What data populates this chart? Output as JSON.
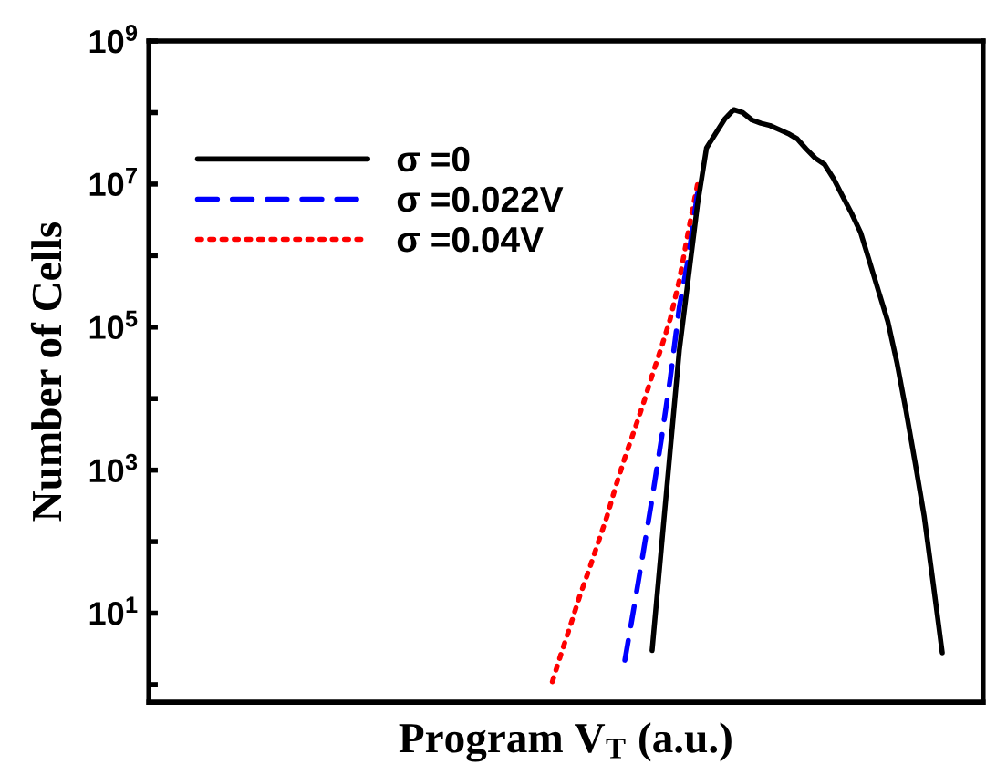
{
  "chart_data": {
    "type": "line",
    "xlabel": "Program V$_{T}$ (a.u.)",
    "ylabel": "Number of Cells",
    "categories": [
      null,
      null,
      null,
      null,
      null,
      null,
      null,
      null,
      null,
      null,
      null,
      null,
      null,
      null,
      null,
      null,
      null,
      null,
      null,
      null,
      null,
      null,
      null,
      null,
      null,
      null,
      null,
      null,
      null,
      null,
      null,
      null,
      null,
      null,
      null,
      null,
      null,
      null,
      null,
      null,
      null,
      null,
      null,
      null,
      null,
      null,
      null,
      null,
      null,
      null,
      null,
      null,
      null,
      null,
      null,
      null,
      null,
      null,
      null,
      null,
      null,
      null,
      null,
      null,
      null,
      null,
      null,
      null,
      null,
      null,
      null,
      null,
      null,
      null,
      null,
      null,
      null,
      null,
      null,
      null,
      null,
      null,
      null,
      null,
      null,
      null,
      null,
      null,
      null,
      null,
      null,
      null
    ],
    "log": "y",
    "ylim": [
      0.57,
      1000000000.0
    ],
    "yticks": [
      {
        "value": 1,
        "label": null
      },
      {
        "value": 10,
        "label": "10$^{1}$"
      },
      {
        "value": 100,
        "label": null
      },
      {
        "value": 1000,
        "label": "10$^{3}$"
      },
      {
        "value": 10000,
        "label": null
      },
      {
        "value": 100000,
        "label": "10$^{5}$"
      },
      {
        "value": 1000000,
        "label": null
      },
      {
        "value": 10000000,
        "label": "10$^{7}$"
      },
      {
        "value": 100000000,
        "label": null
      },
      {
        "value": 1000000000,
        "label": "10$^{9}$"
      }
    ],
    "tick_labels": "y",
    "grid": false,
    "legend": "top left",
    "marker": "none",
    "series": [
      {
        "name": "σ =0",
        "color": "#000000",
        "line_style": "solid",
        "values": [
          null,
          null,
          null,
          null,
          null,
          null,
          null,
          null,
          null,
          null,
          null,
          null,
          null,
          null,
          null,
          null,
          null,
          null,
          null,
          null,
          null,
          null,
          null,
          null,
          null,
          null,
          null,
          null,
          null,
          null,
          null,
          null,
          null,
          null,
          null,
          null,
          null,
          null,
          null,
          null,
          null,
          null,
          null,
          null,
          null,
          null,
          null,
          null,
          null,
          null,
          null,
          null,
          null,
          null,
          null,
          3.0,
          76,
          1900,
          47000,
          490000,
          5100000,
          32000000.0,
          51000000.0,
          81000000.0,
          110000000.0,
          100000000.0,
          79000000.0,
          71000000.0,
          66000000.0,
          58000000.0,
          51000000.0,
          43000000.0,
          31000000.0,
          23000000.0,
          19000000.0,
          12000000.0,
          6800000.0,
          3900000.0,
          2100000.0,
          810000.0,
          310000.0,
          120000.0,
          32000.0,
          6800.0,
          1300.0,
          230,
          26,
          2.8,
          null,
          null,
          null,
          null
        ]
      },
      {
        "name": "σ =0.022V",
        "color": "#0000ff",
        "line_style": "dashed",
        "values": [
          null,
          null,
          null,
          null,
          null,
          null,
          null,
          null,
          null,
          null,
          null,
          null,
          null,
          null,
          null,
          null,
          null,
          null,
          null,
          null,
          null,
          null,
          null,
          null,
          null,
          null,
          null,
          null,
          null,
          null,
          null,
          null,
          null,
          null,
          null,
          null,
          null,
          null,
          null,
          null,
          null,
          null,
          null,
          null,
          null,
          null,
          null,
          null,
          null,
          null,
          null,
          null,
          2.2,
          12,
          68,
          400,
          2600,
          19000,
          190000,
          930000,
          7400000,
          null,
          null,
          null,
          null,
          null,
          null,
          null,
          null,
          null,
          null,
          null,
          null,
          null,
          null,
          null,
          null,
          null,
          null,
          null,
          null,
          null,
          null,
          null,
          null,
          null,
          null,
          null,
          null,
          null,
          null,
          null
        ]
      },
      {
        "name": "σ =0.04V",
        "color": "#ff0000",
        "line_style": "dotted",
        "values": [
          null,
          null,
          null,
          null,
          null,
          null,
          null,
          null,
          null,
          null,
          null,
          null,
          null,
          null,
          null,
          null,
          null,
          null,
          null,
          null,
          null,
          null,
          null,
          null,
          null,
          null,
          null,
          null,
          null,
          null,
          null,
          null,
          null,
          null,
          null,
          null,
          null,
          null,
          null,
          null,
          null,
          null,
          null,
          null,
          1.1,
          2.8,
          6.8,
          17,
          39,
          93,
          220,
          600,
          1500,
          3500,
          8300,
          21000,
          51000,
          130000,
          450000,
          2200000,
          9800000,
          null,
          null,
          null,
          null,
          null,
          null,
          null,
          null,
          null,
          null,
          null,
          null,
          null,
          null,
          null,
          null,
          null,
          null,
          null,
          null,
          null,
          null,
          null,
          null,
          null,
          null,
          null,
          null,
          null,
          null,
          null
        ]
      }
    ]
  }
}
